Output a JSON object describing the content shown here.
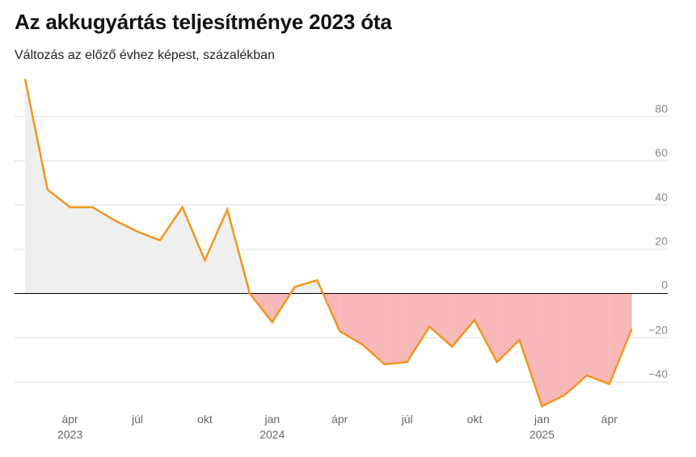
{
  "header": {
    "title": "Az akkugyártás teljesítménye 2023 óta",
    "subtitle": "Változás az előző évhez képest, százalékban"
  },
  "colors": {
    "line": "#f0961e",
    "positive_fill": "#efefef",
    "negative_fill": "#f6b8b8",
    "gridline": "#dddddd",
    "zero_line": "#000000"
  },
  "chart_data": {
    "type": "area",
    "title": "Az akkugyártás teljesítménye 2023 óta",
    "subtitle": "Változás az előző évhez képest, százalékban",
    "xlabel": "",
    "ylabel": "",
    "x_range": [
      "2023-02",
      "2025-05"
    ],
    "ylim": [
      -50,
      97
    ],
    "yticks": [
      80,
      60,
      40,
      20,
      0,
      -20,
      -40
    ],
    "grid": true,
    "legend": "none",
    "x_ticks": [
      {
        "month": "2023-04",
        "label": "ápr",
        "year": "2023"
      },
      {
        "month": "2023-07",
        "label": "júl",
        "year": ""
      },
      {
        "month": "2023-10",
        "label": "okt",
        "year": ""
      },
      {
        "month": "2024-01",
        "label": "jan",
        "year": "2024"
      },
      {
        "month": "2024-04",
        "label": "ápr",
        "year": ""
      },
      {
        "month": "2024-07",
        "label": "júl",
        "year": ""
      },
      {
        "month": "2024-10",
        "label": "okt",
        "year": ""
      },
      {
        "month": "2025-01",
        "label": "jan",
        "year": "2025"
      },
      {
        "month": "2025-04",
        "label": "ápr",
        "year": ""
      }
    ],
    "series": [
      {
        "points": [
          {
            "x": "2023-02",
            "y": 97
          },
          {
            "x": "2023-03",
            "y": 47
          },
          {
            "x": "2023-04",
            "y": 39
          },
          {
            "x": "2023-05",
            "y": 39
          },
          {
            "x": "2023-06",
            "y": 33
          },
          {
            "x": "2023-07",
            "y": 28
          },
          {
            "x": "2023-08",
            "y": 24
          },
          {
            "x": "2023-09",
            "y": 39
          },
          {
            "x": "2023-10",
            "y": 15
          },
          {
            "x": "2023-11",
            "y": 38
          },
          {
            "x": "2023-12",
            "y": 0
          },
          {
            "x": "2024-01",
            "y": -13
          },
          {
            "x": "2024-02",
            "y": 3
          },
          {
            "x": "2024-03",
            "y": 6
          },
          {
            "x": "2024-04",
            "y": -17
          },
          {
            "x": "2024-05",
            "y": -23
          },
          {
            "x": "2024-06",
            "y": -32
          },
          {
            "x": "2024-07",
            "y": -31
          },
          {
            "x": "2024-08",
            "y": -15
          },
          {
            "x": "2024-09",
            "y": -24
          },
          {
            "x": "2024-10",
            "y": -12
          },
          {
            "x": "2024-11",
            "y": -31
          },
          {
            "x": "2024-12",
            "y": -21
          },
          {
            "x": "2025-01",
            "y": -51
          },
          {
            "x": "2025-02",
            "y": -46
          },
          {
            "x": "2025-03",
            "y": -37
          },
          {
            "x": "2025-04",
            "y": -41
          },
          {
            "x": "2025-05",
            "y": -16
          }
        ]
      }
    ]
  }
}
